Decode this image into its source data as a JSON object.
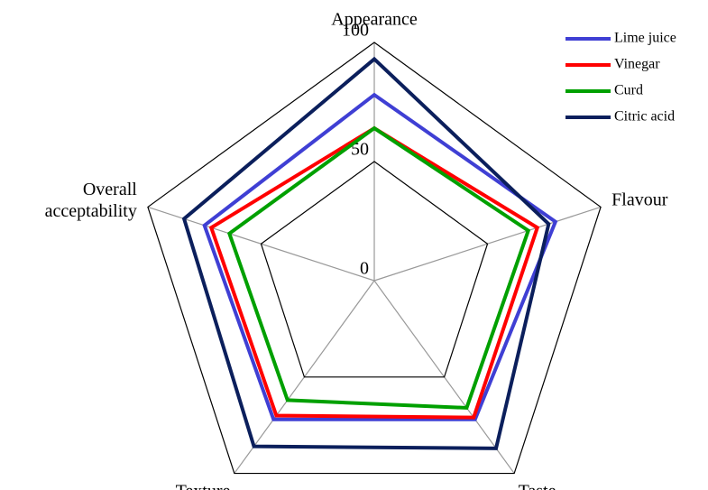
{
  "chart_data": {
    "type": "radar",
    "categories": [
      "Appearance",
      "Flavour",
      "Taste",
      "Texture",
      "Overall acceptability"
    ],
    "series": [
      {
        "name": "Lime juice",
        "color": "#3f3fd4",
        "values": [
          78,
          80,
          72,
          72,
          75
        ]
      },
      {
        "name": "Vinegar",
        "color": "#ff0000",
        "values": [
          64,
          72,
          71,
          70,
          72
        ]
      },
      {
        "name": "Curd",
        "color": "#00a000",
        "values": [
          64,
          68,
          66,
          62,
          64
        ]
      },
      {
        "name": "Citric acid",
        "color": "#0b1f5c",
        "values": [
          93,
          77,
          87,
          86,
          84
        ]
      }
    ],
    "ylim": [
      0,
      100
    ],
    "yticks": [
      0,
      50,
      100
    ],
    "grid": true,
    "legend": "top-right"
  }
}
